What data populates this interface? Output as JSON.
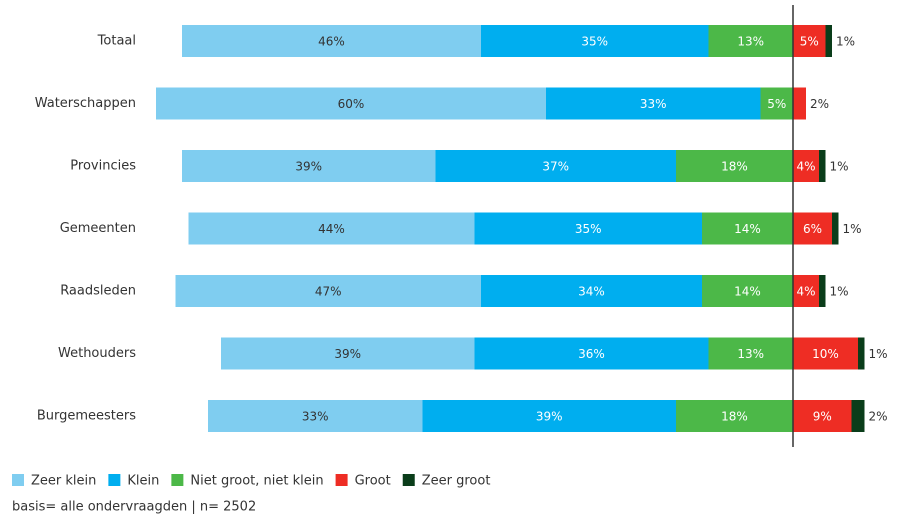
{
  "chart_data": {
    "type": "diverging_bar",
    "categories": [
      "Totaal",
      "Waterschappen",
      "Provincies",
      "Gemeenten",
      "Raadsleden",
      "Wethouders",
      "Burgemeesters"
    ],
    "series": [
      {
        "name": "Zeer klein",
        "color": "#7fcdf0",
        "values": [
          46,
          60,
          39,
          44,
          47,
          39,
          33
        ],
        "value_labels": [
          "46%",
          "60%",
          "39%",
          "44%",
          "47%",
          "39%",
          "33%"
        ]
      },
      {
        "name": "Klein",
        "color": "#00aeef",
        "values": [
          35,
          33,
          37,
          35,
          34,
          36,
          39
        ],
        "value_labels": [
          "35%",
          "33%",
          "37%",
          "35%",
          "34%",
          "36%",
          "39%"
        ]
      },
      {
        "name": "Niet groot, niet klein",
        "color": "#4cb848",
        "values": [
          13,
          5,
          18,
          14,
          14,
          13,
          18
        ],
        "value_labels": [
          "13%",
          "5%",
          "18%",
          "14%",
          "14%",
          "13%",
          "18%"
        ]
      },
      {
        "name": "Groot",
        "color": "#ee2d24",
        "values": [
          5,
          2,
          4,
          6,
          4,
          10,
          9
        ],
        "value_labels": [
          "5%",
          "2%",
          "4%",
          "6%",
          "4%",
          "10%",
          "9%"
        ]
      },
      {
        "name": "Zeer groot",
        "color": "#0a3d1a",
        "values": [
          1,
          null,
          1,
          1,
          1,
          1,
          2
        ],
        "value_labels": [
          "1%",
          null,
          "1%",
          "1%",
          "1%",
          "1%",
          "2%"
        ]
      }
    ],
    "note": "basis= alle ondervraagden | n= 2502"
  }
}
